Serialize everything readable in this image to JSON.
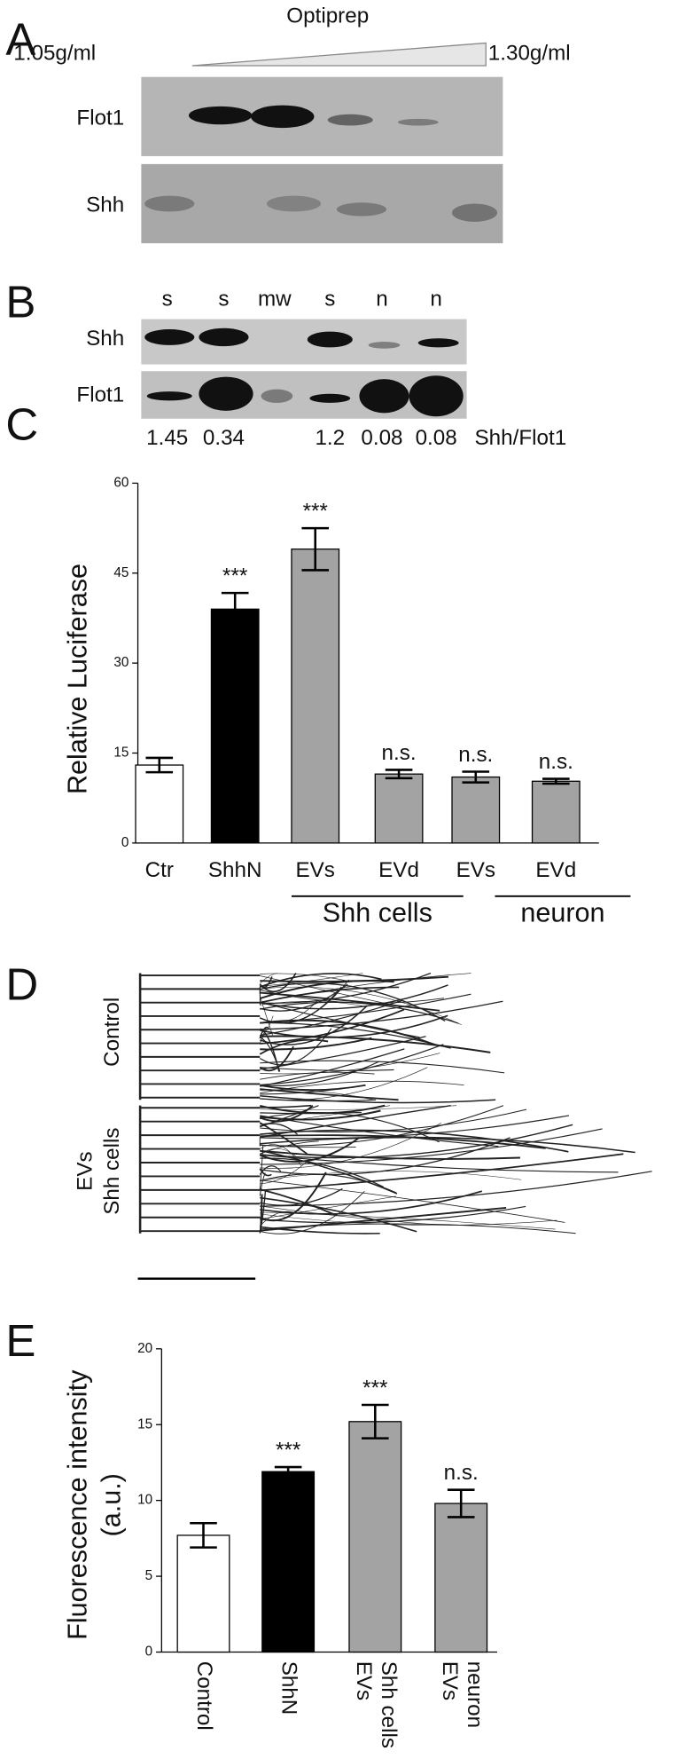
{
  "panel_labels": [
    "A",
    "B",
    "C",
    "D",
    "E"
  ],
  "panel_a": {
    "title": "Optiprep",
    "low_density": "1.05g/ml",
    "high_density": "1.30g/ml",
    "rows": [
      "Flot1",
      "Shh"
    ]
  },
  "panel_b": {
    "lanes": [
      "s",
      "s",
      "mw",
      "s",
      "n",
      "n"
    ],
    "rows": [
      "Shh",
      "Flot1"
    ],
    "ratios": [
      1.45,
      0.34,
      1.2,
      0.08,
      0.08
    ],
    "ratio_label": "Shh/Flot1"
  },
  "panel_d": {
    "rows": [
      [
        "Control"
      ],
      [
        "EVs",
        "Shh cells"
      ]
    ]
  },
  "chart_data": [
    {
      "type": "bar",
      "ylabel": [
        "Relative Luciferase"
      ],
      "categories": [
        [
          "Ctr"
        ],
        [
          "ShhN"
        ],
        [
          "EVs"
        ],
        [
          "EVd"
        ],
        [
          "EVs"
        ],
        [
          "EVd"
        ]
      ],
      "values": [
        13,
        39,
        49,
        11.5,
        11,
        10.3
      ],
      "errors": [
        1.2,
        2.7,
        3.5,
        0.7,
        0.9,
        0.4
      ],
      "colors": [
        "#ffffff",
        "#000000",
        "#a3a3a3",
        "#a3a3a3",
        "#a3a3a3",
        "#a3a3a3"
      ],
      "annotations": [
        null,
        "***",
        "***",
        "n.s.",
        "n.s.",
        "n.s."
      ],
      "group_labels": [
        "Shh cells",
        "neuron"
      ],
      "ylim": [
        0,
        60
      ],
      "yticks": [
        0,
        15,
        30,
        45,
        60
      ]
    },
    {
      "type": "bar",
      "ylabel": [
        "Fluorescence intensity",
        "(a.u.)"
      ],
      "categories": [
        [
          "Control"
        ],
        [
          "ShhN"
        ],
        [
          "EVs",
          "Shh cells"
        ],
        [
          "EVs",
          "neuron"
        ]
      ],
      "values": [
        7.7,
        11.9,
        15.2,
        9.8
      ],
      "errors": [
        0.8,
        0.3,
        1.1,
        0.9
      ],
      "colors": [
        "#ffffff",
        "#000000",
        "#a3a3a3",
        "#a3a3a3"
      ],
      "annotations": [
        null,
        "***",
        "***",
        "n.s."
      ],
      "ylim": [
        0,
        20
      ],
      "yticks": [
        0,
        5,
        10,
        15,
        20
      ]
    }
  ]
}
